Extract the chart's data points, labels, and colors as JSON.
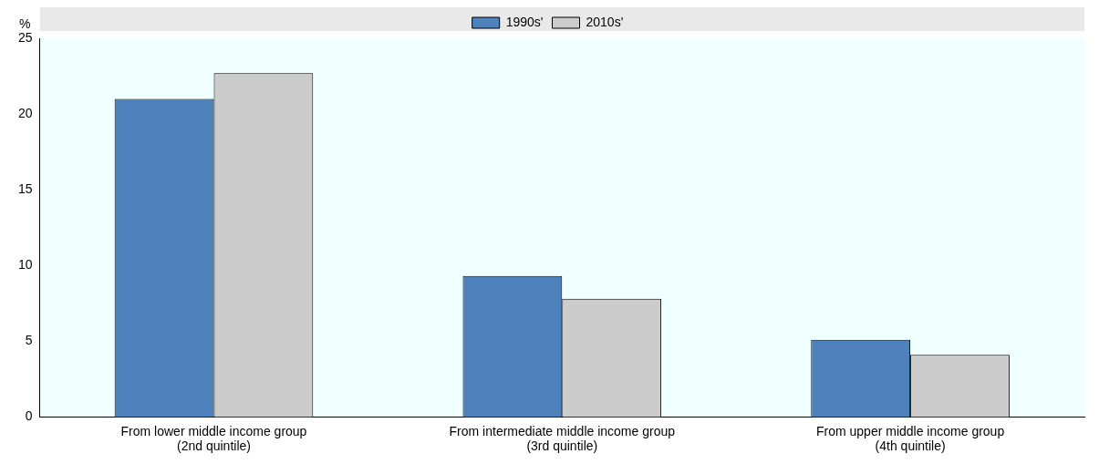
{
  "chart_data": {
    "type": "bar",
    "ylabel": "%",
    "categories": [
      "From lower middle income group (2nd quintile)",
      "From intermediate middle income group (3rd quintile)",
      "From upper middle income group (4th quintile)"
    ],
    "series": [
      {
        "name": "1990s'",
        "color": "#4f81bd",
        "values": [
          21.0,
          9.3,
          5.1
        ]
      },
      {
        "name": "2010s'",
        "color": "#cccccc",
        "values": [
          22.7,
          7.8,
          4.1
        ]
      }
    ],
    "ylim": [
      0,
      25
    ],
    "yticks": [
      0,
      5,
      10,
      15,
      20,
      25
    ],
    "grid": false,
    "legend": "top"
  }
}
